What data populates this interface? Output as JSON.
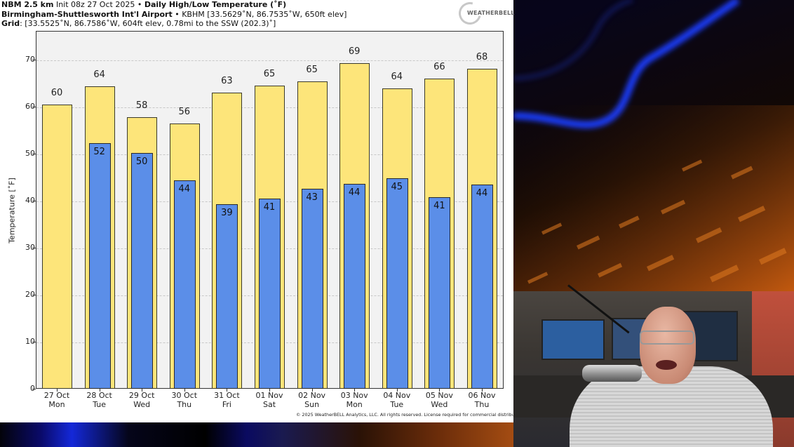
{
  "header": {
    "line1": {
      "model": "NBM 2.5 km",
      "init": " Init 08z 27 Oct 2025 • ",
      "title": "Daily High/Low Temperature (˚F)"
    },
    "line2": {
      "station": "Birmingham-Shuttlesworth Int'l Airport",
      "details": " • KBHM [33.5629˚N, 86.7535˚W, 650ft elev]"
    },
    "line3": {
      "label": "Grid",
      "details": ": [33.5525˚N, 86.7586˚W, 604ft elev, 0.78mi to the SSW (202.3)˚]"
    }
  },
  "logo": {
    "text": "WEATHERBELL"
  },
  "copyright": "© 2025 WeatherBELL Analytics, LLC. All rights reserved. License required for commercial distribution.",
  "colors": {
    "high_bar": "#fde57a",
    "low_bar": "#5b8ee8",
    "plot_bg": "#f2f2f2"
  },
  "chart_data": {
    "type": "bar",
    "title": "Daily High/Low Temperature (˚F)",
    "xlabel": "",
    "ylabel": "Temperature [˚F]",
    "ylim": [
      0,
      76
    ],
    "yticks": [
      0,
      10,
      20,
      30,
      40,
      50,
      60,
      70
    ],
    "grid": true,
    "categories": [
      {
        "date": "27 Oct",
        "day": "Mon"
      },
      {
        "date": "28 Oct",
        "day": "Tue"
      },
      {
        "date": "29 Oct",
        "day": "Wed"
      },
      {
        "date": "30 Oct",
        "day": "Thu"
      },
      {
        "date": "31 Oct",
        "day": "Fri"
      },
      {
        "date": "01 Nov",
        "day": "Sat"
      },
      {
        "date": "02 Nov",
        "day": "Sun"
      },
      {
        "date": "03 Nov",
        "day": "Mon"
      },
      {
        "date": "04 Nov",
        "day": "Tue"
      },
      {
        "date": "05 Nov",
        "day": "Wed"
      },
      {
        "date": "06 Nov",
        "day": "Thu"
      }
    ],
    "series": [
      {
        "name": "High",
        "values": [
          60.4,
          64.3,
          57.7,
          56.4,
          63.0,
          64.5,
          65.3,
          69.2,
          63.9,
          65.9,
          68.0
        ],
        "labels": [
          "60",
          "64",
          "58",
          "56",
          "63",
          "65",
          "65",
          "69",
          "64",
          "66",
          "68"
        ]
      },
      {
        "name": "Low",
        "values": [
          null,
          52.2,
          50.1,
          44.3,
          39.2,
          40.5,
          42.6,
          43.6,
          44.8,
          40.8,
          43.5
        ],
        "labels": [
          null,
          "52",
          "50",
          "44",
          "39",
          "41",
          "43",
          "44",
          "45",
          "41",
          "44"
        ]
      }
    ]
  }
}
